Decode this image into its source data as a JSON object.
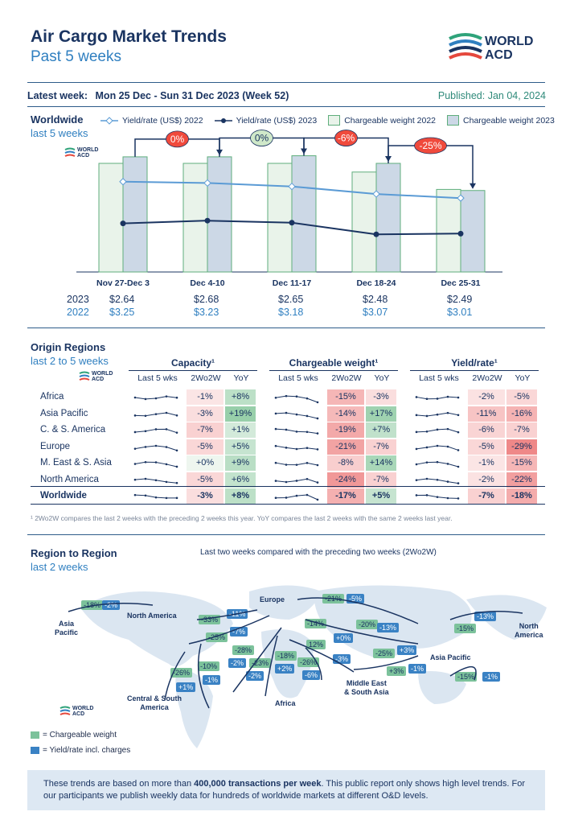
{
  "header": {
    "title": "Air Cargo Market Trends",
    "subtitle": "Past 5 weeks",
    "logo_line1": "WORLD",
    "logo_line2": "ACD",
    "week_label": "Latest week:",
    "week_value": "Mon 25 Dec - Sun 31 Dec 2023 (Week 52)",
    "published": "Published: Jan 04, 2024"
  },
  "worldwide": {
    "title": "Worldwide",
    "subtitle": "last 5 weeks",
    "legend": {
      "yield2022": "Yield/rate (US$) 2022",
      "yield2023": "Yield/rate (US$) 2023",
      "cw2022": "Chargeable weight 2022",
      "cw2023": "Chargeable weight 2023"
    },
    "row_label_2023": "2023",
    "row_label_2022": "2022"
  },
  "chart_data": {
    "type": "bar",
    "categories": [
      "Nov 27-Dec 3",
      "Dec 4-10",
      "Dec 11-17",
      "Dec 18-24",
      "Dec 25-31"
    ],
    "series": [
      {
        "name": "Chargeable weight 2022",
        "values": [
          100,
          100,
          100,
          92,
          76
        ],
        "color": "#e9f3ea"
      },
      {
        "name": "Chargeable weight 2023",
        "values": [
          106,
          106,
          107,
          100,
          75
        ],
        "color": "#ccd8e6"
      },
      {
        "name": "Yield/rate (US$) 2022",
        "values": [
          3.25,
          3.23,
          3.18,
          3.07,
          3.01
        ],
        "color": "#5b9bd5"
      },
      {
        "name": "Yield/rate (US$) 2023",
        "values": [
          2.64,
          2.68,
          2.65,
          2.48,
          2.49
        ],
        "color": "#1a3461"
      }
    ],
    "yield_2023_labels": [
      "$2.64",
      "$2.68",
      "$2.65",
      "$2.48",
      "$2.49"
    ],
    "yield_2022_labels": [
      "$3.25",
      "$3.23",
      "$3.18",
      "$3.07",
      "$3.01"
    ],
    "change_bubbles": [
      {
        "label": "0%",
        "color": "#f04a3c"
      },
      {
        "label": "0%",
        "color": "#cfe8c9"
      },
      {
        "label": "-6%",
        "color": "#f04a3c"
      },
      {
        "label": "-25%",
        "color": "#f04a3c"
      }
    ]
  },
  "origin": {
    "title": "Origin Regions",
    "subtitle": "last 2 to 5 weeks",
    "groups": [
      "Capacity¹",
      "Chargeable weight¹",
      "Yield/rate¹"
    ],
    "subheaders": [
      "Last 5 wks",
      "2Wo2W",
      "YoY"
    ],
    "rows": [
      {
        "region": "Africa",
        "cap": [
          "-1%",
          "+8%"
        ],
        "cw": [
          "-15%",
          "-3%"
        ],
        "yr": [
          "-2%",
          "-5%"
        ]
      },
      {
        "region": "Asia Pacific",
        "cap": [
          "-3%",
          "+19%"
        ],
        "cw": [
          "-14%",
          "+17%"
        ],
        "yr": [
          "-11%",
          "-16%"
        ]
      },
      {
        "region": "C. & S. America",
        "cap": [
          "-7%",
          "+1%"
        ],
        "cw": [
          "-19%",
          "+7%"
        ],
        "yr": [
          "-6%",
          "-7%"
        ]
      },
      {
        "region": "Europe",
        "cap": [
          "-5%",
          "+5%"
        ],
        "cw": [
          "-21%",
          "-7%"
        ],
        "yr": [
          "-5%",
          "-29%"
        ]
      },
      {
        "region": "M. East & S. Asia",
        "cap": [
          "+0%",
          "+9%"
        ],
        "cw": [
          "-8%",
          "+14%"
        ],
        "yr": [
          "-1%",
          "-15%"
        ]
      },
      {
        "region": "North America",
        "cap": [
          "-5%",
          "+6%"
        ],
        "cw": [
          "-24%",
          "-7%"
        ],
        "yr": [
          "-2%",
          "-22%"
        ]
      },
      {
        "region": "Worldwide",
        "cap": [
          "-3%",
          "+8%"
        ],
        "cw": [
          "-17%",
          "+5%"
        ],
        "yr": [
          "-7%",
          "-18%"
        ]
      }
    ],
    "footnote": "¹ 2Wo2W compares the last 2 weeks with the preceding 2 weeks this year. YoY compares the last 2 weeks with the same 2 weeks last year."
  },
  "region_to_region": {
    "title": "Region to Region",
    "subtitle": "last 2 weeks",
    "caption": "Last two weeks compared with the preceding two weeks (2Wo2W)",
    "labels": {
      "asia_pacific_left": "Asia\nPacific",
      "north_america_left": "North America",
      "europe": "Europe",
      "north_america_right": "North\nAmerica",
      "asia_pacific_right": "Asia Pacific",
      "middle_east": "Middle East\n& South Asia",
      "africa": "Africa",
      "central_south": "Central & South\nAmerica"
    },
    "legend_cw": "= Chargeable weight",
    "legend_yr": "= Yield/rate incl. charges",
    "badges": [
      {
        "t": "-18%",
        "c": "green"
      },
      {
        "t": "-2%",
        "c": "blue"
      },
      {
        "t": "-11%",
        "c": "blue"
      },
      {
        "t": "-33%",
        "c": "green"
      },
      {
        "t": "-7%",
        "c": "blue"
      },
      {
        "t": "-25%",
        "c": "green"
      },
      {
        "t": "-21%",
        "c": "green"
      },
      {
        "t": "-5%",
        "c": "blue"
      },
      {
        "t": "-14%",
        "c": "green"
      },
      {
        "t": "-20%",
        "c": "green"
      },
      {
        "t": "-13%",
        "c": "blue"
      },
      {
        "t": "+0%",
        "c": "blue"
      },
      {
        "t": "-13%",
        "c": "blue"
      },
      {
        "t": "-15%",
        "c": "green"
      },
      {
        "t": "-28%",
        "c": "green"
      },
      {
        "t": "-2%",
        "c": "blue"
      },
      {
        "t": "-23%",
        "c": "green"
      },
      {
        "t": "-2%",
        "c": "blue"
      },
      {
        "t": "-18%",
        "c": "green"
      },
      {
        "t": "+2%",
        "c": "blue"
      },
      {
        "t": "12%",
        "c": "green"
      },
      {
        "t": "-26%",
        "c": "green"
      },
      {
        "t": "-6%",
        "c": "blue"
      },
      {
        "t": "-3%",
        "c": "blue"
      },
      {
        "t": "-25%",
        "c": "green"
      },
      {
        "t": "+3%",
        "c": "blue"
      },
      {
        "t": "+3%",
        "c": "green"
      },
      {
        "t": "-1%",
        "c": "blue"
      },
      {
        "t": "-15%",
        "c": "green"
      },
      {
        "t": "-1%",
        "c": "blue"
      },
      {
        "t": "-26%",
        "c": "green"
      },
      {
        "t": "+1%",
        "c": "blue"
      },
      {
        "t": "-10%",
        "c": "green"
      },
      {
        "t": "-1%",
        "c": "blue"
      }
    ]
  },
  "footer": {
    "text_a": "These trends are based on more than ",
    "text_bold": "400,000 transactions per week",
    "text_b": ". This public report only shows high level trends. For our participants we publish weekly data for hundreds of worldwide markets at different O&D levels."
  }
}
